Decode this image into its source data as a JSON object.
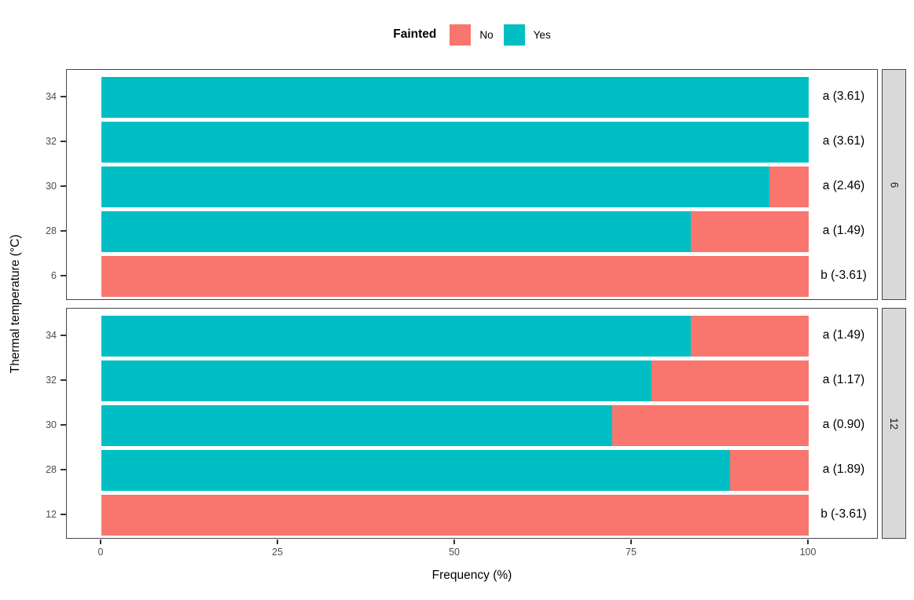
{
  "legend": {
    "title": "Fainted",
    "entries": [
      {
        "label": "No",
        "color": "#F8766D"
      },
      {
        "label": "Yes",
        "color": "#00BFC4"
      }
    ]
  },
  "axes": {
    "x_title": "Frequency (%)",
    "y_title": "Thermal temperature (°C)"
  },
  "colors": {
    "no": "#F8766D",
    "yes": "#00BFC4",
    "strip_bg": "#D9D9D9",
    "panel_border": "#474747",
    "tick_text": "#4D4D4D"
  },
  "chart_data": {
    "type": "bar",
    "orientation": "horizontal",
    "stacked": true,
    "title": "",
    "xlabel": "Frequency (%)",
    "ylabel": "Thermal temperature (°C)",
    "xlim": [
      0,
      100
    ],
    "x_tick_values": [
      0,
      25,
      50,
      75,
      100
    ],
    "legend_position": "top",
    "grid": false,
    "series_names": [
      "No",
      "Yes"
    ],
    "facets": [
      {
        "strip": "6",
        "rows": [
          {
            "category": "34",
            "yes": 100,
            "no": 0,
            "annotation": "a (3.61)"
          },
          {
            "category": "32",
            "yes": 100,
            "no": 0,
            "annotation": "a (3.61)"
          },
          {
            "category": "30",
            "yes": 94.4,
            "no": 5.6,
            "annotation": "a (2.46)"
          },
          {
            "category": "28",
            "yes": 83.3,
            "no": 16.7,
            "annotation": "a (1.49)"
          },
          {
            "category": "6",
            "yes": 0,
            "no": 100,
            "annotation": "b (-3.61)"
          }
        ]
      },
      {
        "strip": "12",
        "rows": [
          {
            "category": "34",
            "yes": 83.3,
            "no": 16.7,
            "annotation": "a (1.49)"
          },
          {
            "category": "32",
            "yes": 77.8,
            "no": 22.2,
            "annotation": "a (1.17)"
          },
          {
            "category": "30",
            "yes": 72.2,
            "no": 27.8,
            "annotation": "a (0.90)"
          },
          {
            "category": "28",
            "yes": 88.9,
            "no": 11.1,
            "annotation": "a (1.89)"
          },
          {
            "category": "12",
            "yes": 0,
            "no": 100,
            "annotation": "b (-3.61)"
          }
        ]
      }
    ]
  }
}
